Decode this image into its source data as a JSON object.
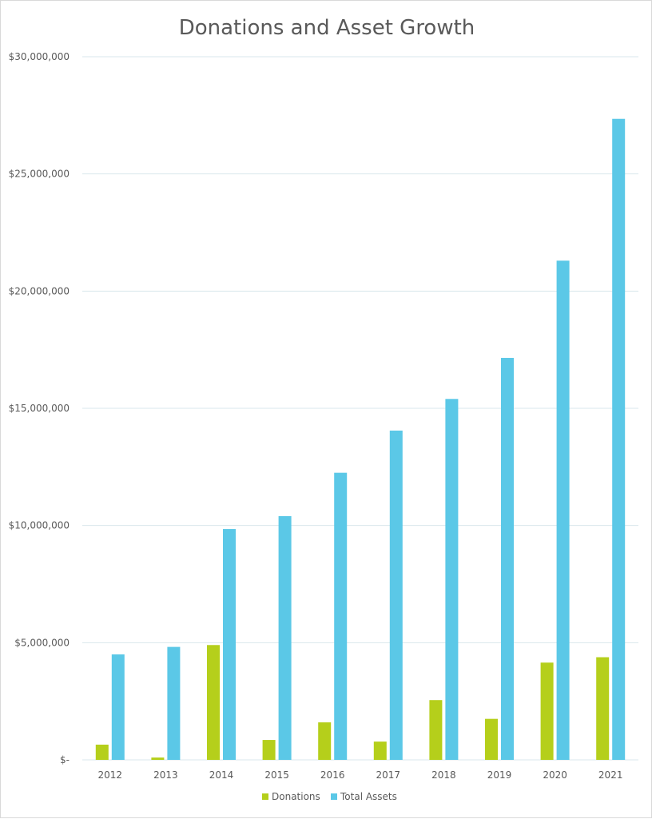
{
  "chart_data": {
    "type": "bar",
    "title": "Donations and Asset Growth",
    "xlabel": "",
    "ylabel": "",
    "categories": [
      "2012",
      "2013",
      "2014",
      "2015",
      "2016",
      "2017",
      "2018",
      "2019",
      "2020",
      "2021"
    ],
    "series": [
      {
        "name": "Donations",
        "color": "#b5cf1b",
        "values": [
          650000,
          100000,
          4900000,
          850000,
          1600000,
          780000,
          2550000,
          1750000,
          4150000,
          4380000
        ]
      },
      {
        "name": "Total Assets",
        "color": "#5bc8e7",
        "values": [
          4500000,
          4820000,
          9850000,
          10400000,
          12250000,
          14050000,
          15400000,
          17150000,
          21300000,
          27350000
        ]
      }
    ],
    "ylim": [
      0,
      30000000
    ],
    "yticks": [
      0,
      5000000,
      10000000,
      15000000,
      20000000,
      25000000,
      30000000
    ],
    "ytick_labels": [
      "$-",
      "$5,000,000",
      "$10,000,000",
      "$15,000,000",
      "$20,000,000",
      "$25,000,000",
      "$30,000,000"
    ],
    "grid": true,
    "legend_position": "bottom",
    "gridline_color": "#d9e7ec",
    "text_color": "#595959"
  }
}
